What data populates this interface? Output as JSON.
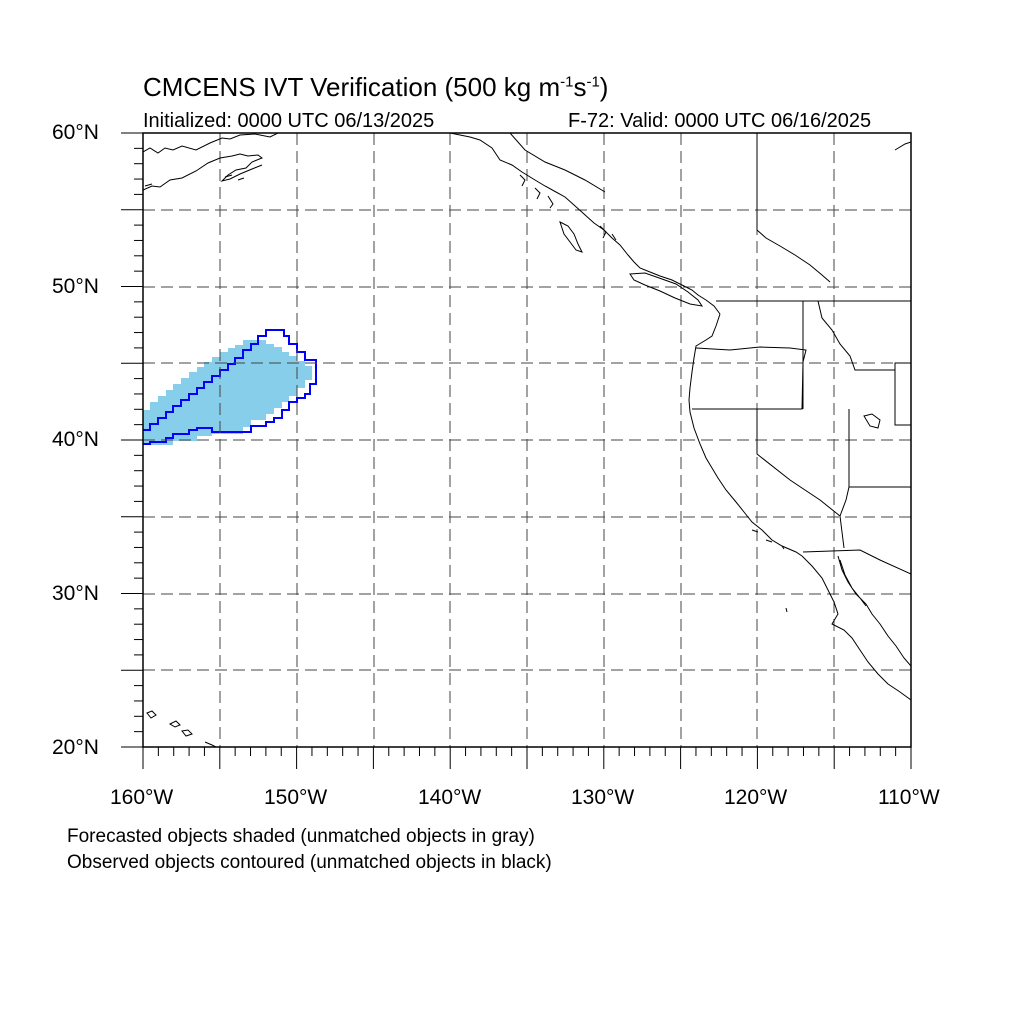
{
  "header": {
    "title_prefix": "CMCENS IVT Verification (500 kg m",
    "title_exp1": "-1",
    "title_mid": "s",
    "title_exp2": "-1",
    "title_suffix": ")",
    "initialized": "Initialized: 0000 UTC 06/13/2025",
    "valid": "F-72: Valid: 0000 UTC 06/16/2025"
  },
  "axes": {
    "lat_labels": [
      "60°N",
      "50°N",
      "40°N",
      "30°N",
      "20°N"
    ],
    "lon_labels": [
      "160°W",
      "150°W",
      "140°W",
      "130°W",
      "120°W",
      "110°W"
    ]
  },
  "footnotes": {
    "line1": "Forecasted objects shaded (unmatched objects in gray)",
    "line2": "Observed objects contoured (unmatched objects in black)"
  },
  "colors": {
    "forecast_fill": "#87ceeb",
    "observed_contour": "#0000ff",
    "coastline": "#000000",
    "grid": "#444444"
  },
  "map": {
    "projection": "cylindrical-equidistant",
    "lon_range": [
      -160,
      -110
    ],
    "lat_range": [
      20,
      60
    ],
    "grid": "dashed every 5 degrees"
  }
}
